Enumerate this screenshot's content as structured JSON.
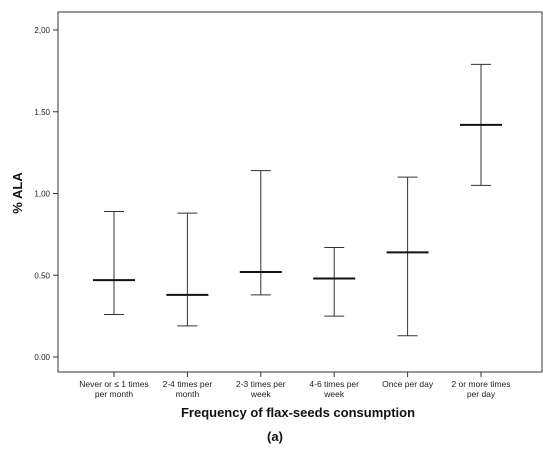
{
  "chart_data": {
    "type": "errorbar",
    "title": "",
    "xlabel": "Frequency of flax-seeds consumption",
    "ylabel": "% ALA",
    "panel_label": "(a)",
    "ylim": [
      0,
      2
    ],
    "yticks": [
      "0.00",
      "0.50",
      "1,00",
      "1.50",
      "2,00"
    ],
    "ytick_values": [
      0,
      0.5,
      1.0,
      1.5,
      2.0
    ],
    "grid": false,
    "categories": [
      [
        "Never or ≤ 1 times",
        "per month"
      ],
      [
        "2-4 times per",
        "month"
      ],
      [
        "2-3 times per",
        "week"
      ],
      [
        "4-6 times per",
        "week"
      ],
      [
        "Once per day"
      ],
      [
        "2 or more times",
        "per day"
      ]
    ],
    "series": [
      {
        "mean": [
          0.47,
          0.38,
          0.52,
          0.48,
          0.64,
          1.42
        ],
        "lower": [
          0.26,
          0.19,
          0.38,
          0.25,
          0.13,
          1.05
        ],
        "upper": [
          0.89,
          0.88,
          1.14,
          0.67,
          1.1,
          1.79
        ]
      }
    ]
  }
}
